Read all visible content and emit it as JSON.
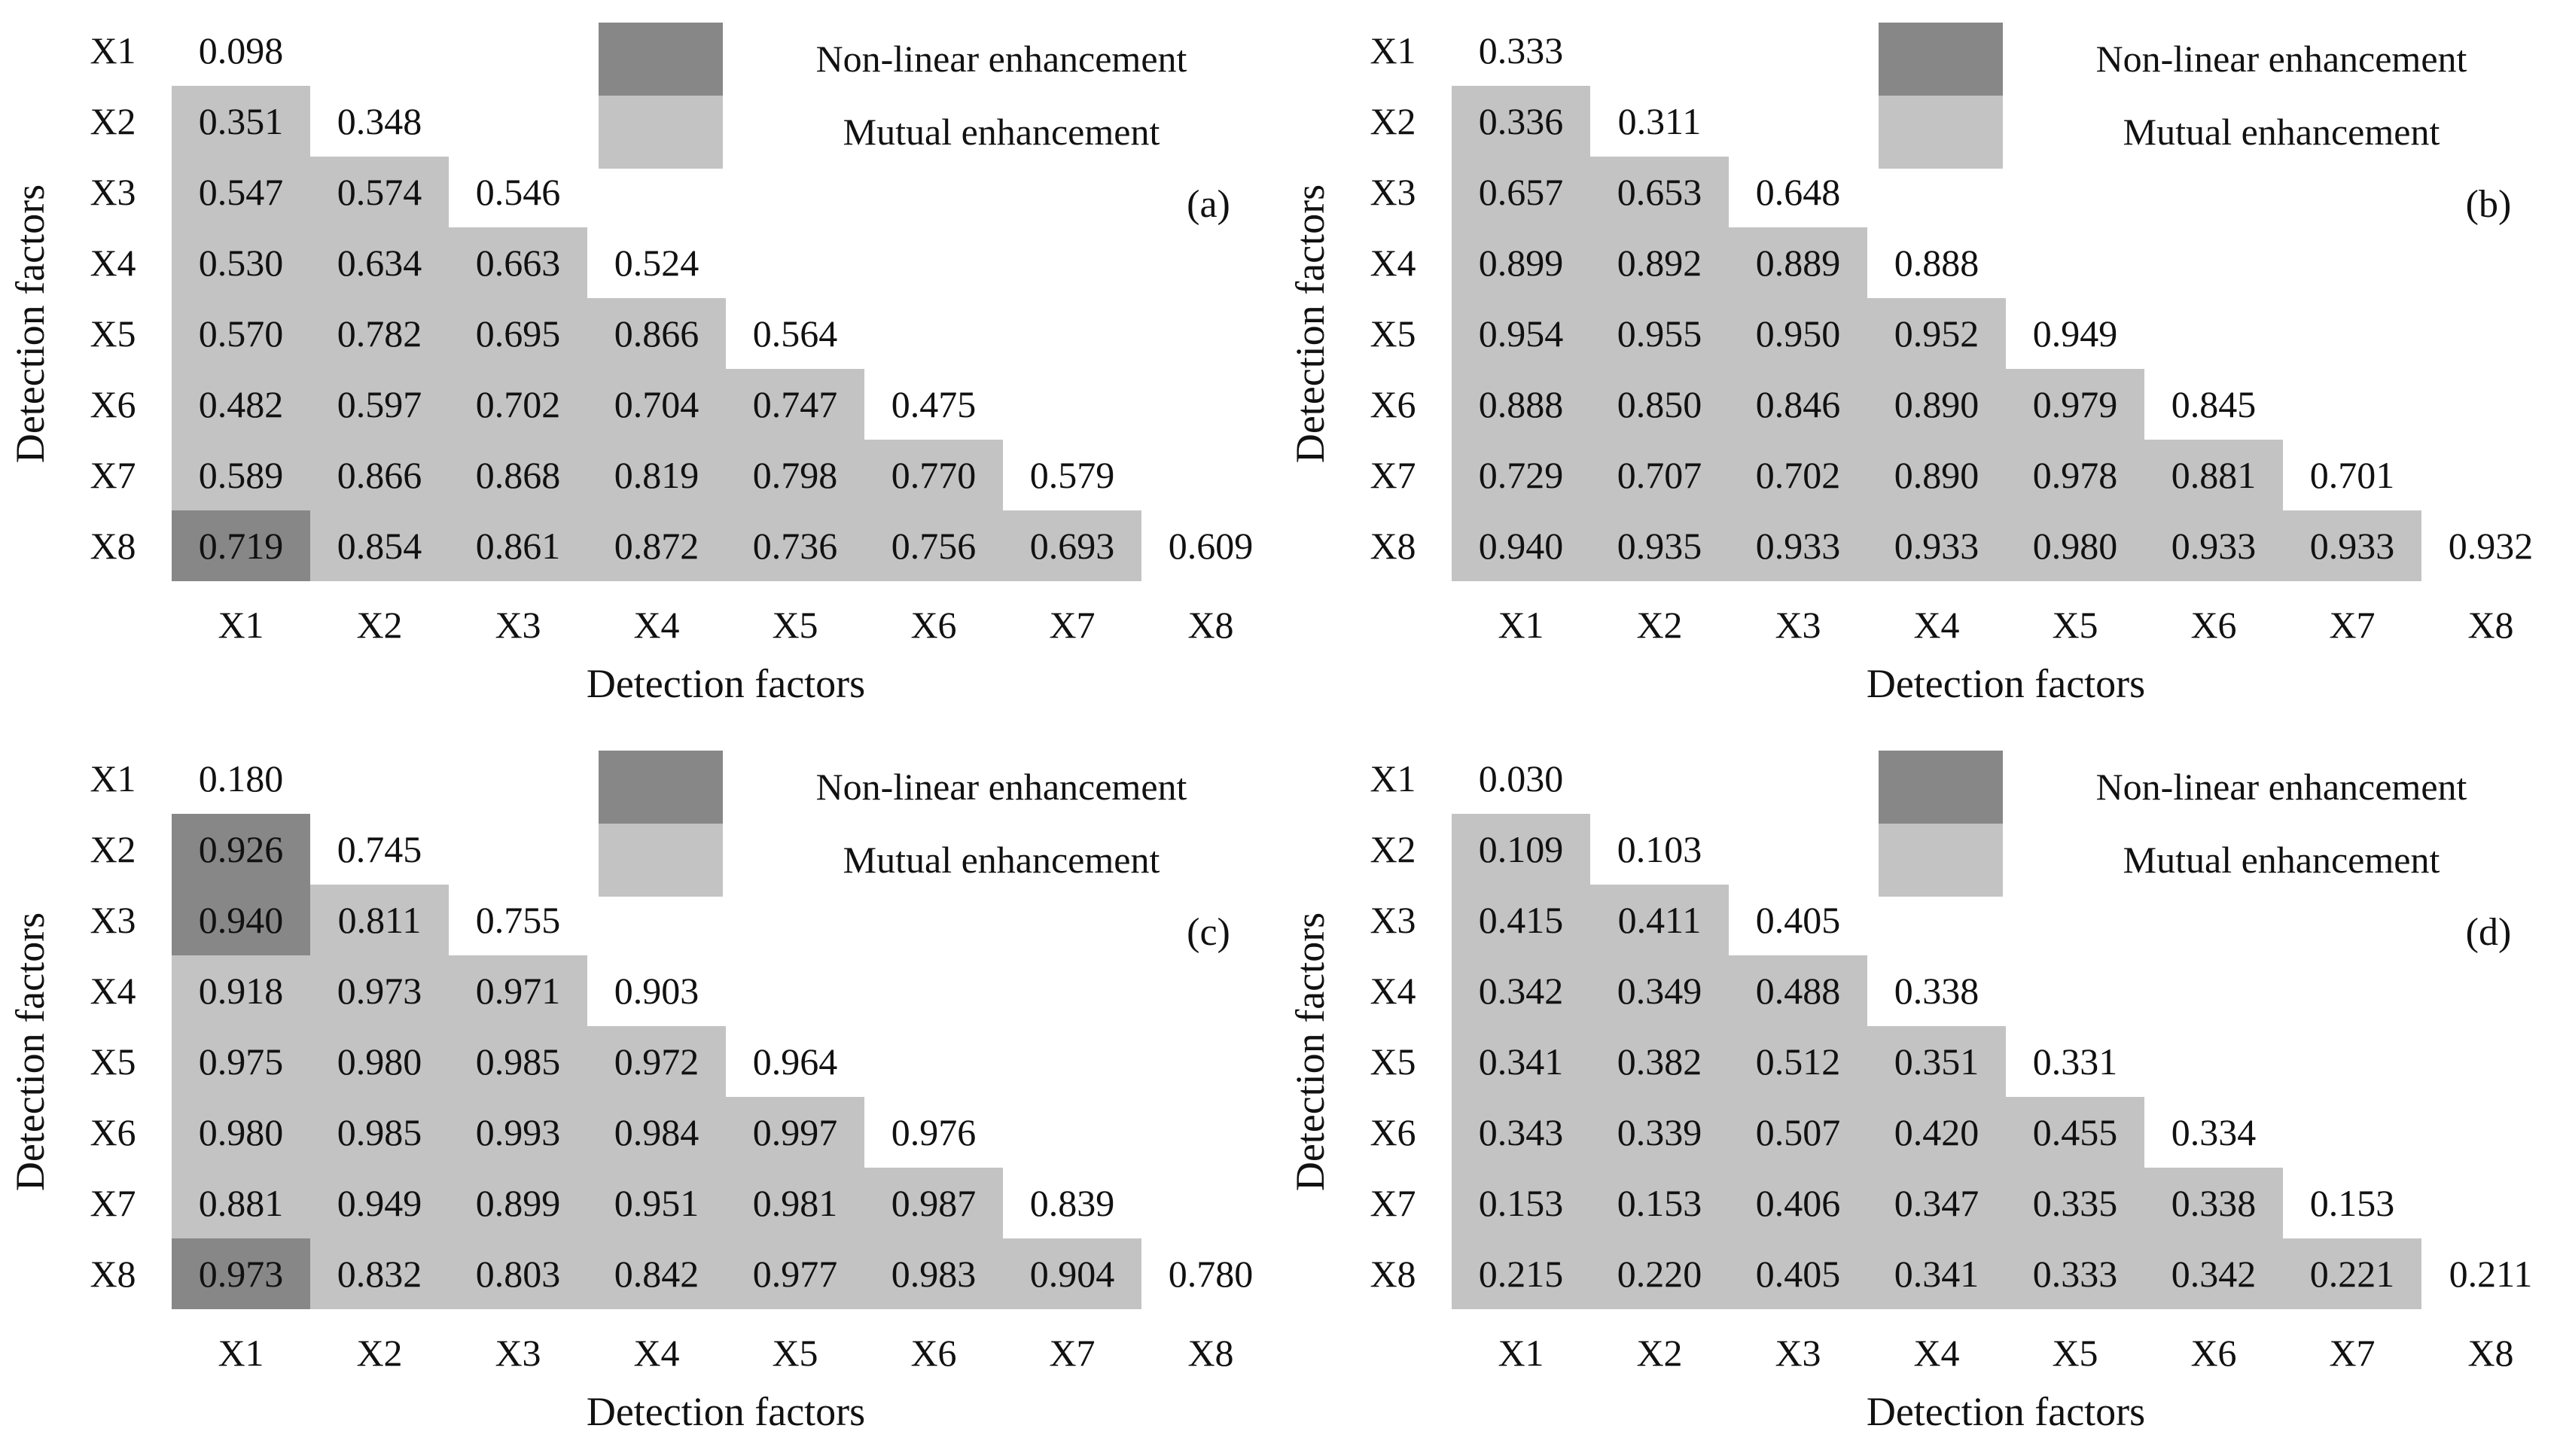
{
  "figure": {
    "background": "#ffffff",
    "colors": {
      "nonlinear": "#878787",
      "mutual": "#c3c3c3",
      "text": "#111111"
    },
    "legend": {
      "nonlinear_label": "Non-linear enhancement",
      "mutual_label": "Mutual enhancement"
    },
    "x_axis_title": "Detection factors",
    "y_axis_title": "Detection factors"
  },
  "chart_data": {
    "type": "heatmap",
    "description": "Four lower-triangular interaction-detection matrices (a)-(d) of factors X1-X8; shaded cells denote interaction type: dark gray = non-linear enhancement, light gray = mutual enhancement; diagonal cells (single-factor q values) are unshaded.",
    "xlabel": "Detection factors",
    "ylabel": "Detection factors",
    "categories": [
      "X1",
      "X2",
      "X3",
      "X4",
      "X5",
      "X6",
      "X7",
      "X8"
    ],
    "legend": [
      {
        "name": "Non-linear enhancement",
        "color": "#878787"
      },
      {
        "name": "Mutual enhancement",
        "color": "#c3c3c3"
      }
    ],
    "legend_position": "top-right",
    "grid": false,
    "panels": [
      {
        "label": "(a)",
        "matrix": [
          [
            "0.098"
          ],
          [
            "0.351",
            "0.348"
          ],
          [
            "0.547",
            "0.574",
            "0.546"
          ],
          [
            "0.530",
            "0.634",
            "0.663",
            "0.524"
          ],
          [
            "0.570",
            "0.782",
            "0.695",
            "0.866",
            "0.564"
          ],
          [
            "0.482",
            "0.597",
            "0.702",
            "0.704",
            "0.747",
            "0.475"
          ],
          [
            "0.589",
            "0.866",
            "0.868",
            "0.819",
            "0.798",
            "0.770",
            "0.579"
          ],
          [
            "0.719",
            "0.854",
            "0.861",
            "0.872",
            "0.736",
            "0.756",
            "0.693",
            "0.609"
          ]
        ],
        "dark_cells": [
          [
            8,
            1
          ]
        ]
      },
      {
        "label": "(b)",
        "matrix": [
          [
            "0.333"
          ],
          [
            "0.336",
            "0.311"
          ],
          [
            "0.657",
            "0.653",
            "0.648"
          ],
          [
            "0.899",
            "0.892",
            "0.889",
            "0.888"
          ],
          [
            "0.954",
            "0.955",
            "0.950",
            "0.952",
            "0.949"
          ],
          [
            "0.888",
            "0.850",
            "0.846",
            "0.890",
            "0.979",
            "0.845"
          ],
          [
            "0.729",
            "0.707",
            "0.702",
            "0.890",
            "0.978",
            "0.881",
            "0.701"
          ],
          [
            "0.940",
            "0.935",
            "0.933",
            "0.933",
            "0.980",
            "0.933",
            "0.933",
            "0.932"
          ]
        ],
        "dark_cells": []
      },
      {
        "label": "(c)",
        "matrix": [
          [
            "0.180"
          ],
          [
            "0.926",
            "0.745"
          ],
          [
            "0.940",
            "0.811",
            "0.755"
          ],
          [
            "0.918",
            "0.973",
            "0.971",
            "0.903"
          ],
          [
            "0.975",
            "0.980",
            "0.985",
            "0.972",
            "0.964"
          ],
          [
            "0.980",
            "0.985",
            "0.993",
            "0.984",
            "0.997",
            "0.976"
          ],
          [
            "0.881",
            "0.949",
            "0.899",
            "0.951",
            "0.981",
            "0.987",
            "0.839"
          ],
          [
            "0.973",
            "0.832",
            "0.803",
            "0.842",
            "0.977",
            "0.983",
            "0.904",
            "0.780"
          ]
        ],
        "dark_cells": [
          [
            2,
            1
          ],
          [
            3,
            1
          ],
          [
            8,
            1
          ]
        ]
      },
      {
        "label": "(d)",
        "matrix": [
          [
            "0.030"
          ],
          [
            "0.109",
            "0.103"
          ],
          [
            "0.415",
            "0.411",
            "0.405"
          ],
          [
            "0.342",
            "0.349",
            "0.488",
            "0.338"
          ],
          [
            "0.341",
            "0.382",
            "0.512",
            "0.351",
            "0.331"
          ],
          [
            "0.343",
            "0.339",
            "0.507",
            "0.420",
            "0.455",
            "0.334"
          ],
          [
            "0.153",
            "0.153",
            "0.406",
            "0.347",
            "0.335",
            "0.338",
            "0.153"
          ],
          [
            "0.215",
            "0.220",
            "0.405",
            "0.341",
            "0.333",
            "0.342",
            "0.221",
            "0.211"
          ]
        ],
        "dark_cells": []
      }
    ]
  }
}
